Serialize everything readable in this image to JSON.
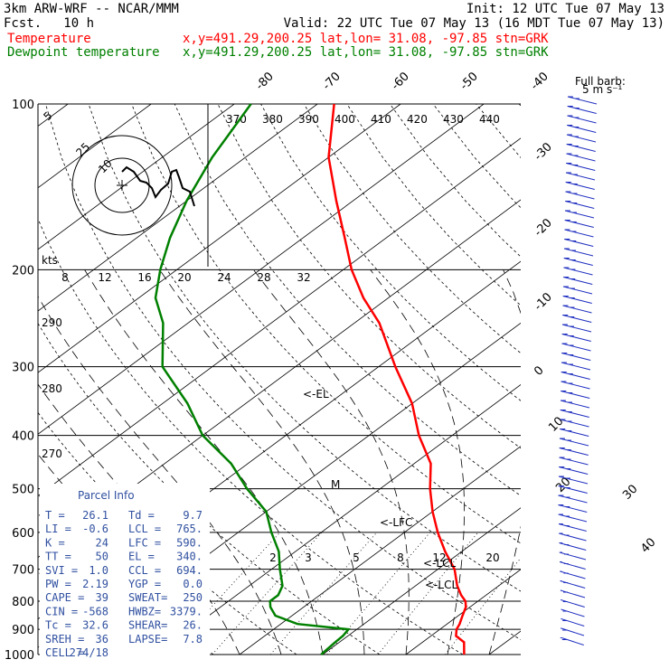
{
  "header": {
    "title": "3km ARW-WRF -- NCAR/MMM",
    "init": "Init: 12 UTC Tue 07 May 13",
    "fcst_label": "Fcst.",
    "fcst_value": "10 h",
    "valid": "Valid: 22 UTC Tue 07 May 13 (16 MDT Tue 07 May 13)"
  },
  "legend": [
    {
      "name": "Temperature",
      "info": "x,y=491.29,200.25   lat,lon= 31.08, -97.85  stn=GRK",
      "color": "#ff0000"
    },
    {
      "name": "Dewpoint temperature",
      "info": "x,y=491.29,200.25   lat,lon= 31.08, -97.85  stn=GRK",
      "color": "#008000"
    }
  ],
  "barb_legend": {
    "title": "Full barb:",
    "value": "5 m s⁻¹"
  },
  "hodograph": {
    "units": "kts"
  },
  "labels": {
    "el": "<-EL",
    "lfc": "<-LFC",
    "lcl": "<-LCL",
    "ccl_arrow": "<-LCL",
    "m_marker": "M"
  },
  "parcel_info": {
    "title": "Parcel Info",
    "rows": [
      [
        "T   =",
        "26.1",
        "Td  =",
        "9.7"
      ],
      [
        "LI  =",
        "-0.6",
        "LCL =",
        "765."
      ],
      [
        "K   =",
        "24",
        "LFC =",
        "590."
      ],
      [
        "TT  =",
        "50",
        "EL  =",
        "340."
      ],
      [
        "SVI =",
        "1.0",
        "CCL =",
        "694."
      ],
      [
        "PW  =",
        "2.19",
        "YGP =",
        "0.0"
      ],
      [
        "CAPE =",
        "39",
        "SWEAT=",
        "250"
      ],
      [
        "CIN =",
        "-568",
        "HWBZ=",
        "3379."
      ],
      [
        "Tc  =",
        "32.6",
        "SHEAR=",
        "26."
      ],
      [
        "SREH =",
        "36",
        "LAPSE=",
        "7.8"
      ],
      [
        "CELL =",
        "274/18",
        "",
        ""
      ]
    ]
  },
  "chart_data": {
    "type": "line",
    "pressure_ticks": [
      "100",
      "200",
      "300",
      "400",
      "500",
      "600",
      "700",
      "800",
      "900",
      "1000"
    ],
    "pressure_values": [
      100,
      200,
      300,
      400,
      500,
      600,
      700,
      800,
      900,
      1000
    ],
    "temp_isotherm_labels": [
      "-80",
      "-70",
      "-60",
      "-50",
      "-40",
      "-30",
      "-20",
      "-10",
      "0",
      "10",
      "20",
      "30",
      "40"
    ],
    "theta_labels_top": [
      "370",
      "380",
      "390",
      "400",
      "410",
      "420",
      "430",
      "440"
    ],
    "theta_labels_left": [
      "290",
      "280",
      "270"
    ],
    "mixing_ratio_labels": [
      "2",
      "3",
      "5",
      "8",
      "12",
      "20"
    ],
    "hodograph_speed_labels": [
      "8",
      "12",
      "16",
      "20",
      "24",
      "28",
      "32"
    ],
    "hodograph_ring_labels": [
      "5",
      "25",
      "10"
    ],
    "series": [
      {
        "name": "Temperature",
        "color": "#ff0000",
        "p": [
          1000,
          950,
          925,
          900,
          880,
          850,
          820,
          800,
          780,
          750,
          700,
          650,
          600,
          550,
          500,
          450,
          400,
          350,
          300,
          250,
          225,
          200,
          175,
          150,
          125,
          100
        ],
        "t": [
          27,
          25,
          23,
          22,
          21.5,
          20.5,
          19.5,
          18.5,
          17,
          15,
          12,
          8,
          4,
          0,
          -4,
          -8,
          -14,
          -20,
          -28,
          -37,
          -43,
          -49,
          -55,
          -62,
          -70,
          -78
        ]
      },
      {
        "name": "Dewpoint temperature",
        "color": "#008000",
        "p": [
          1000,
          950,
          925,
          900,
          880,
          850,
          820,
          800,
          780,
          750,
          700,
          650,
          600,
          550,
          500,
          450,
          400,
          350,
          300,
          250,
          225,
          200,
          175,
          150,
          125,
          100
        ],
        "t": [
          9.8,
          9.5,
          9.4,
          9,
          2,
          -2,
          -4,
          -5,
          -5,
          -6,
          -9,
          -12,
          -16,
          -20,
          -26,
          -32,
          -40,
          -47,
          -56,
          -63,
          -68,
          -72,
          -76,
          -80,
          -84,
          -88
        ]
      }
    ]
  }
}
